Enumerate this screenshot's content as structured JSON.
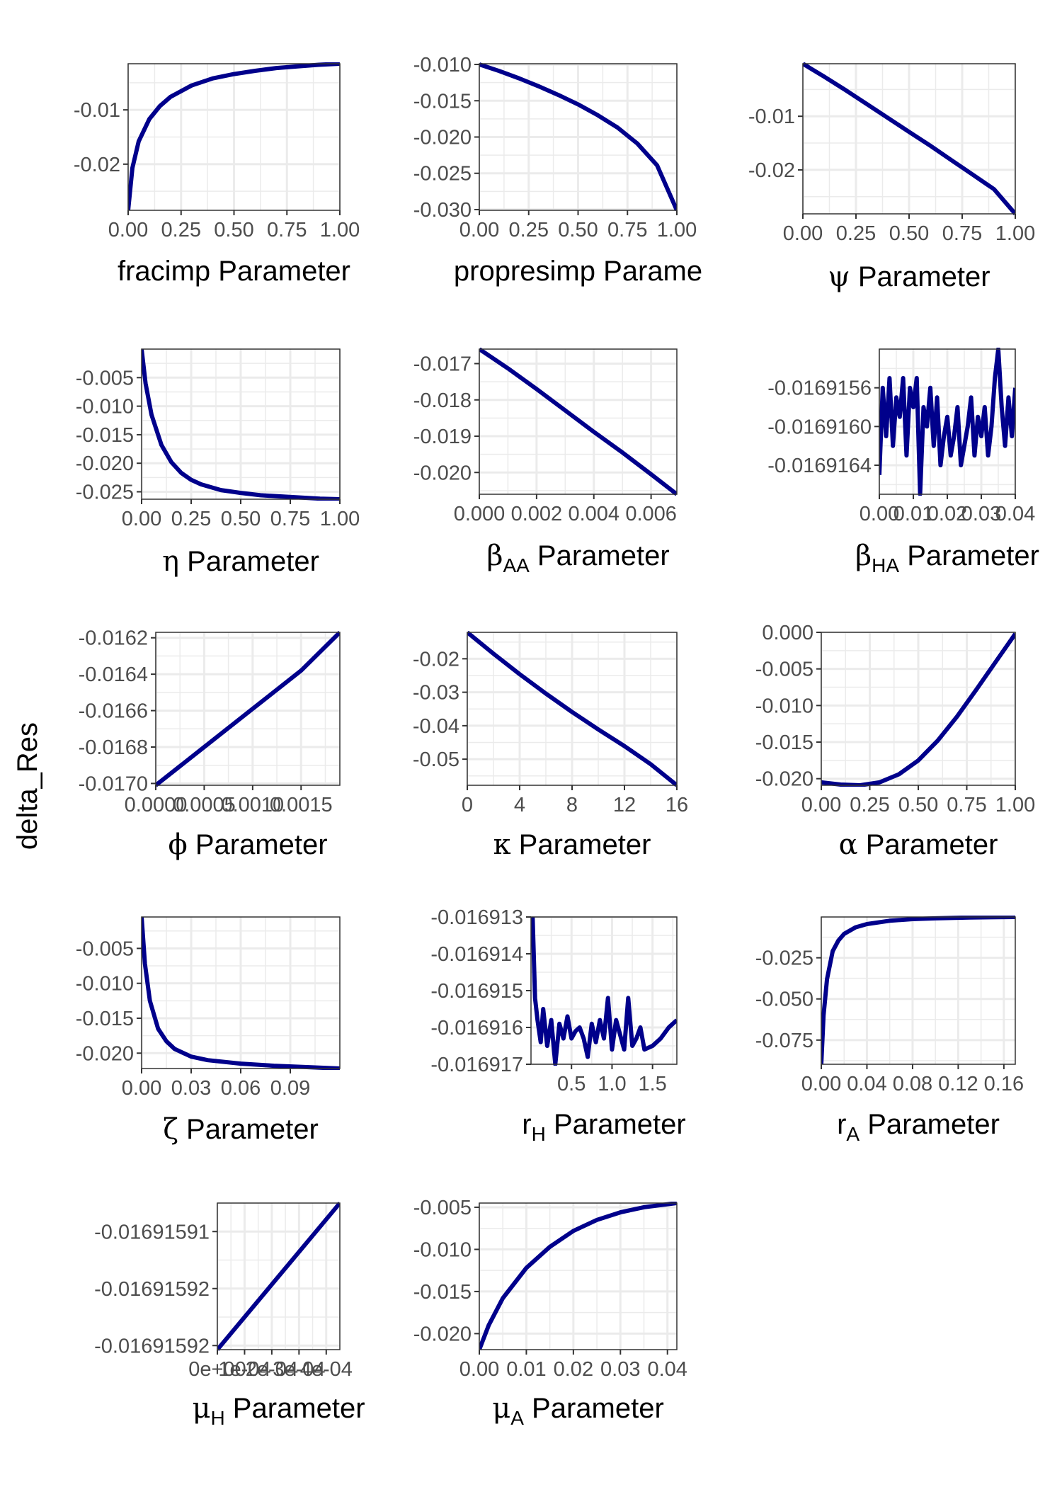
{
  "y_axis_label": "delta_Res",
  "line_color": "#00008B",
  "grid_color": "#EBEBEB",
  "chart_data": [
    {
      "type": "line",
      "xlabel": "fracimp Parameter",
      "xticks": [
        "0.00",
        "0.25",
        "0.50",
        "0.75",
        "1.00"
      ],
      "yticks": [
        "-0.01",
        "-0.02"
      ],
      "xlim": [
        0,
        1
      ],
      "ylim": [
        -0.0285,
        -0.0015
      ],
      "x": [
        0,
        0.02,
        0.05,
        0.1,
        0.15,
        0.2,
        0.3,
        0.4,
        0.5,
        0.6,
        0.7,
        0.8,
        0.9,
        1.0
      ],
      "y": [
        -0.0285,
        -0.0207,
        -0.0158,
        -0.0117,
        -0.0093,
        -0.0076,
        -0.0055,
        -0.0042,
        -0.0034,
        -0.0028,
        -0.0023,
        -0.002,
        -0.0017,
        -0.0015
      ]
    },
    {
      "type": "line",
      "xlabel": "propresimp Parame",
      "xticks": [
        "0.00",
        "0.25",
        "0.50",
        "0.75",
        "1.00"
      ],
      "yticks": [
        "-0.010",
        "-0.015",
        "-0.020",
        "-0.025",
        "-0.030"
      ],
      "xlim": [
        0,
        1
      ],
      "ylim": [
        -0.0301,
        -0.0099
      ],
      "x": [
        0,
        0.1,
        0.2,
        0.3,
        0.4,
        0.5,
        0.6,
        0.7,
        0.8,
        0.9,
        1.0
      ],
      "y": [
        -0.01,
        -0.0109,
        -0.0119,
        -0.013,
        -0.0142,
        -0.0155,
        -0.017,
        -0.0187,
        -0.0209,
        -0.0239,
        -0.0301
      ]
    },
    {
      "type": "line",
      "xlabel": "ψ Parameter",
      "xticks": [
        "0.00",
        "0.25",
        "0.50",
        "0.75",
        "1.00"
      ],
      "yticks": [
        "-0.01",
        "-0.02"
      ],
      "xlim": [
        0,
        1
      ],
      "ylim": [
        -0.0282,
        -0.0002
      ],
      "x": [
        0,
        0.1,
        0.2,
        0.3,
        0.4,
        0.5,
        0.6,
        0.7,
        0.8,
        0.9,
        1.0
      ],
      "y": [
        -0.0002,
        -0.0026,
        -0.0051,
        -0.0077,
        -0.0103,
        -0.0129,
        -0.0155,
        -0.0182,
        -0.0209,
        -0.0236,
        -0.0282
      ]
    },
    {
      "type": "line",
      "xlabel": "η Parameter",
      "xticks": [
        "0.00",
        "0.25",
        "0.50",
        "0.75",
        "1.00"
      ],
      "yticks": [
        "-0.005",
        "-0.010",
        "-0.015",
        "-0.020",
        "-0.025"
      ],
      "xlim": [
        0,
        1
      ],
      "ylim": [
        -0.0263,
        0.0
      ],
      "x": [
        0,
        0.02,
        0.05,
        0.1,
        0.15,
        0.2,
        0.25,
        0.3,
        0.4,
        0.5,
        0.6,
        0.7,
        0.8,
        0.9,
        1.0
      ],
      "y": [
        0.0,
        -0.006,
        -0.0115,
        -0.0168,
        -0.0198,
        -0.0217,
        -0.0229,
        -0.0237,
        -0.0247,
        -0.0252,
        -0.0256,
        -0.0258,
        -0.026,
        -0.0262,
        -0.0263
      ]
    },
    {
      "type": "line",
      "xlabel": "βAA Parameter",
      "xticks": [
        "0.000",
        "0.002",
        "0.004",
        "0.006"
      ],
      "yticks": [
        "-0.017",
        "-0.018",
        "-0.019",
        "-0.020"
      ],
      "xlim": [
        0,
        0.0069
      ],
      "ylim": [
        -0.0206,
        -0.0166
      ],
      "x": [
        0,
        0.001,
        0.002,
        0.003,
        0.004,
        0.005,
        0.006,
        0.0069
      ],
      "y": [
        -0.0166,
        -0.01713,
        -0.0177,
        -0.01829,
        -0.01888,
        -0.01945,
        -0.02005,
        -0.0206
      ]
    },
    {
      "type": "line",
      "xlabel": "βHA Parameter",
      "xticks": [
        "0.00",
        "0.01",
        "0.02",
        "0.03",
        "0.04"
      ],
      "yticks": [
        "-0.0169156",
        "-0.0169160",
        "-0.0169164"
      ],
      "xlim": [
        0,
        0.04
      ],
      "ylim": [
        -0.0169167,
        -0.0169152
      ],
      "x": [
        0,
        0.001,
        0.002,
        0.003,
        0.004,
        0.005,
        0.006,
        0.007,
        0.008,
        0.009,
        0.01,
        0.011,
        0.012,
        0.013,
        0.014,
        0.015,
        0.016,
        0.017,
        0.018,
        0.019,
        0.02,
        0.021,
        0.022,
        0.023,
        0.024,
        0.025,
        0.026,
        0.027,
        0.028,
        0.029,
        0.03,
        0.031,
        0.032,
        0.033,
        0.034,
        0.035,
        0.036,
        0.037,
        0.038,
        0.039,
        0.04
      ],
      "y": [
        -0.0169165,
        -0.0169156,
        -0.0169161,
        -0.0169155,
        -0.0169162,
        -0.0169157,
        -0.0169159,
        -0.0169155,
        -0.0169163,
        -0.0169156,
        -0.0169158,
        -0.0169155,
        -0.0169167,
        -0.0169158,
        -0.016916,
        -0.0169156,
        -0.0169162,
        -0.0169157,
        -0.0169164,
        -0.0169161,
        -0.0169159,
        -0.0169163,
        -0.0169161,
        -0.0169158,
        -0.0169164,
        -0.0169162,
        -0.016916,
        -0.0169157,
        -0.0169163,
        -0.0169159,
        -0.0169161,
        -0.0169158,
        -0.0169163,
        -0.016916,
        -0.0169155,
        -0.0169152,
        -0.0169158,
        -0.0169162,
        -0.0169157,
        -0.0169161,
        -0.0169156
      ]
    },
    {
      "type": "line",
      "xlabel": "ϕ Parameter",
      "xticks": [
        "0.0000",
        "0.0005",
        "0.0010",
        "0.0015"
      ],
      "yticks": [
        "-0.0162",
        "-0.0164",
        "-0.0166",
        "-0.0168",
        "-0.0170"
      ],
      "xlim": [
        0,
        0.0019
      ],
      "ylim": [
        -0.01701,
        -0.01617
      ],
      "x": [
        0,
        0.0005,
        0.001,
        0.0015,
        0.0019
      ],
      "y": [
        -0.01701,
        -0.0168,
        -0.01659,
        -0.01638,
        -0.01617
      ]
    },
    {
      "type": "line",
      "xlabel": "κ Parameter",
      "xticks": [
        "0",
        "4",
        "8",
        "12",
        "16"
      ],
      "yticks": [
        "-0.02",
        "-0.03",
        "-0.04",
        "-0.05"
      ],
      "xlim": [
        0,
        16
      ],
      "ylim": [
        -0.0578,
        -0.0121
      ],
      "x": [
        0,
        2,
        4,
        6,
        8,
        10,
        12,
        14,
        16
      ],
      "y": [
        -0.0121,
        -0.0185,
        -0.0246,
        -0.0304,
        -0.0359,
        -0.0411,
        -0.0461,
        -0.0515,
        -0.0578
      ]
    },
    {
      "type": "line",
      "xlabel": "α Parameter",
      "xticks": [
        "0.00",
        "0.25",
        "0.50",
        "0.75",
        "1.00"
      ],
      "yticks": [
        "0.000",
        "-0.005",
        "-0.010",
        "-0.015",
        "-0.020"
      ],
      "xlim": [
        0,
        1
      ],
      "ylim": [
        -0.0209,
        0.0
      ],
      "x": [
        0,
        0.1,
        0.2,
        0.3,
        0.4,
        0.5,
        0.6,
        0.7,
        0.8,
        0.9,
        1.0
      ],
      "y": [
        -0.0205,
        -0.0208,
        -0.0209,
        -0.0205,
        -0.0194,
        -0.0175,
        -0.0148,
        -0.0115,
        -0.0078,
        -0.004,
        -0.0002
      ]
    },
    {
      "type": "line",
      "xlabel": "ζ Parameter",
      "xticks": [
        "0.00",
        "0.03",
        "0.06",
        "0.09"
      ],
      "yticks": [
        "-0.005",
        "-0.010",
        "-0.015",
        "-0.020"
      ],
      "xlim": [
        0,
        0.12
      ],
      "ylim": [
        -0.0222,
        -0.0005
      ],
      "x": [
        0,
        0.002,
        0.005,
        0.01,
        0.015,
        0.02,
        0.03,
        0.04,
        0.06,
        0.08,
        0.1,
        0.12
      ],
      "y": [
        -0.0005,
        -0.0072,
        -0.0125,
        -0.0165,
        -0.0183,
        -0.0194,
        -0.0205,
        -0.021,
        -0.0215,
        -0.0218,
        -0.022,
        -0.0222
      ]
    },
    {
      "type": "line",
      "xlabel": "rH Parameter",
      "xticks": [
        "0.5",
        "1.0",
        "1.5"
      ],
      "yticks": [
        "-0.016913",
        "-0.016914",
        "-0.016915",
        "-0.016916",
        "-0.016917"
      ],
      "xlim": [
        0,
        1.8
      ],
      "ylim": [
        -0.016917,
        -0.016913
      ],
      "x": [
        0.02,
        0.05,
        0.08,
        0.12,
        0.15,
        0.2,
        0.25,
        0.3,
        0.35,
        0.4,
        0.45,
        0.5,
        0.55,
        0.6,
        0.65,
        0.7,
        0.75,
        0.8,
        0.85,
        0.9,
        0.95,
        1.0,
        1.05,
        1.1,
        1.15,
        1.2,
        1.25,
        1.3,
        1.35,
        1.4,
        1.5,
        1.6,
        1.7,
        1.8
      ],
      "y": [
        -0.016913,
        -0.0169152,
        -0.0169158,
        -0.0169164,
        -0.0169155,
        -0.0169165,
        -0.0169158,
        -0.016917,
        -0.0169159,
        -0.0169163,
        -0.0169157,
        -0.0169163,
        -0.0169161,
        -0.016916,
        -0.0169163,
        -0.0169168,
        -0.0169159,
        -0.0169164,
        -0.0169158,
        -0.0169163,
        -0.0169152,
        -0.0169166,
        -0.0169158,
        -0.0169162,
        -0.0169166,
        -0.0169152,
        -0.0169165,
        -0.0169163,
        -0.016916,
        -0.0169166,
        -0.0169165,
        -0.0169163,
        -0.016916,
        -0.0169158
      ]
    },
    {
      "type": "line",
      "xlabel": "rA Parameter",
      "xticks": [
        "0.00",
        "0.04",
        "0.08",
        "0.12",
        "0.16"
      ],
      "yticks": [
        "-0.025",
        "-0.050",
        "-0.075"
      ],
      "xlim": [
        0,
        0.17
      ],
      "ylim": [
        -0.0897,
        -0.0002
      ],
      "x": [
        0,
        0.002,
        0.005,
        0.01,
        0.015,
        0.02,
        0.03,
        0.04,
        0.06,
        0.08,
        0.1,
        0.13,
        0.17
      ],
      "y": [
        -0.0897,
        -0.06,
        -0.038,
        -0.021,
        -0.0145,
        -0.0105,
        -0.0065,
        -0.0045,
        -0.0025,
        -0.0015,
        -0.001,
        -0.0005,
        -0.0002
      ]
    },
    {
      "type": "line",
      "xlabel": "μH Parameter",
      "xticks": [
        "0e+00",
        "1e-04",
        "2e-04",
        "3e-04",
        "4e-04"
      ],
      "yticks": [
        "-0.01691591",
        "-0.01691592",
        "-0.01691592"
      ],
      "xlim": [
        0,
        0.00045
      ],
      "ylim": [
        -0.016915925,
        -0.016915907
      ],
      "x": [
        0,
        0.00045
      ],
      "y": [
        -0.016915925,
        -0.016915907
      ]
    },
    {
      "type": "line",
      "xlabel": "μA Parameter",
      "xticks": [
        "0.00",
        "0.01",
        "0.02",
        "0.03",
        "0.04"
      ],
      "yticks": [
        "-0.005",
        "-0.010",
        "-0.015",
        "-0.020"
      ],
      "xlim": [
        0,
        0.042
      ],
      "ylim": [
        -0.0219,
        -0.0045
      ],
      "x": [
        0,
        0.002,
        0.005,
        0.01,
        0.015,
        0.02,
        0.025,
        0.03,
        0.035,
        0.042
      ],
      "y": [
        -0.0219,
        -0.019,
        -0.0158,
        -0.0122,
        -0.0097,
        -0.0078,
        -0.0065,
        -0.0056,
        -0.005,
        -0.0045
      ]
    }
  ]
}
